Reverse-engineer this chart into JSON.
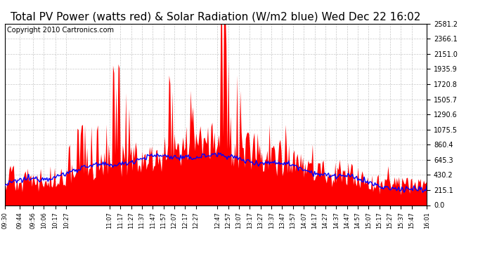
{
  "title": "Total PV Power (watts red) & Solar Radiation (W/m2 blue) Wed Dec 22 16:02",
  "copyright_text": "Copyright 2010 Cartronics.com",
  "background_color": "#ffffff",
  "plot_bg_color": "#ffffff",
  "grid_color": "#c8c8c8",
  "red_color": "#ff0000",
  "blue_color": "#0000ff",
  "y_max": 2581.2,
  "y_min": 0.0,
  "y_ticks": [
    0.0,
    215.1,
    430.2,
    645.3,
    860.4,
    1075.5,
    1290.6,
    1505.7,
    1720.8,
    1935.9,
    2151.0,
    2366.1,
    2581.2
  ],
  "x_tick_labels": [
    "09:30",
    "09:44",
    "09:56",
    "10:06",
    "10:17",
    "10:27",
    "11:07",
    "11:17",
    "11:27",
    "11:37",
    "11:47",
    "11:57",
    "12:07",
    "12:17",
    "12:27",
    "12:47",
    "12:57",
    "13:07",
    "13:17",
    "13:27",
    "13:37",
    "13:47",
    "13:57",
    "14:07",
    "14:17",
    "14:27",
    "14:37",
    "14:47",
    "14:57",
    "15:07",
    "15:17",
    "15:27",
    "15:37",
    "15:47",
    "16:01"
  ],
  "title_fontsize": 11,
  "copyright_fontsize": 7,
  "tick_fontsize": 7,
  "x_tick_fontsize": 6
}
